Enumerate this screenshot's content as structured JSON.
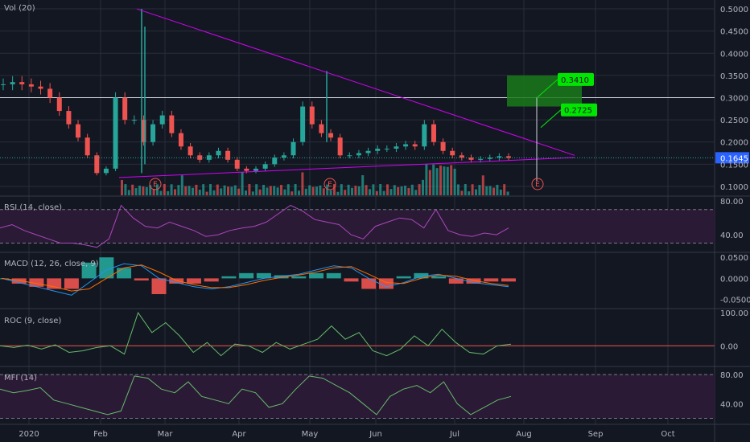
{
  "colors": {
    "background": "#131722",
    "grid": "#2a2e39",
    "text": "#b2b5be",
    "up": "#26a69a",
    "down": "#ef5350",
    "trendline": "#d500f9",
    "rsi": "#ab47bc",
    "macd": "#2196f3",
    "signal": "#ff6d00",
    "roc": "#66bb6a",
    "zero_line": "#ef5350",
    "band_fill": "#2a1a35",
    "box_fill": "#1b7a1b",
    "anno_bg": "#00e600",
    "last_price_bg": "#2962ff"
  },
  "chart_data": [
    {
      "type": "candlestick",
      "pane": "main",
      "legend": "Vol (20)",
      "y_axis_labels": [
        "0.5000",
        "0.4500",
        "0.4000",
        "0.3500",
        "0.3000",
        "0.2500",
        "0.2000",
        "0.1500",
        "0.1000"
      ],
      "ylim": [
        0.08,
        0.52
      ],
      "last_price": "0.1645",
      "horizontal_level": 0.3,
      "annotations": [
        {
          "label": "0.3410",
          "value": 0.341
        },
        {
          "label": "0.2725",
          "value": 0.2725
        }
      ],
      "target_box": {
        "from": 0.28,
        "to": 0.35
      },
      "earnings_label": "E",
      "x_tick_labels": [
        "2020",
        "Feb",
        "Mar",
        "Apr",
        "May",
        "Jun",
        "Jul",
        "Aug",
        "Sep",
        "Oct"
      ],
      "price_series": [
        0.33,
        0.335,
        0.33,
        0.325,
        0.32,
        0.3,
        0.27,
        0.24,
        0.21,
        0.17,
        0.13,
        0.14,
        0.3,
        0.25,
        0.25,
        0.2,
        0.24,
        0.26,
        0.22,
        0.19,
        0.17,
        0.16,
        0.17,
        0.18,
        0.16,
        0.14,
        0.135,
        0.14,
        0.15,
        0.165,
        0.17,
        0.2,
        0.28,
        0.24,
        0.22,
        0.21,
        0.17,
        0.17,
        0.175,
        0.18,
        0.185,
        0.185,
        0.19,
        0.195,
        0.19,
        0.24,
        0.2,
        0.18,
        0.17,
        0.165,
        0.16,
        0.162,
        0.165,
        0.168,
        0.1645
      ],
      "trend_upper": {
        "from": [
          0.5,
          "Feb 14"
        ],
        "to": [
          0.17,
          "Aug 27"
        ]
      },
      "trend_lower": {
        "from": [
          0.12,
          "Feb 14"
        ],
        "to": [
          0.165,
          "Aug 27"
        ]
      }
    },
    {
      "type": "line",
      "pane": "rsi",
      "legend": "RSI (14, close)",
      "y_axis_labels": [
        "80.00",
        "40.00"
      ],
      "ylim": [
        20,
        85
      ],
      "band": [
        30,
        70
      ],
      "values": [
        48,
        52,
        45,
        40,
        35,
        30,
        30,
        28,
        25,
        35,
        75,
        60,
        50,
        48,
        55,
        50,
        45,
        38,
        40,
        45,
        48,
        50,
        55,
        65,
        75,
        68,
        58,
        55,
        52,
        40,
        35,
        50,
        55,
        60,
        58,
        48,
        70,
        45,
        40,
        38,
        42,
        40,
        48
      ]
    },
    {
      "type": "line",
      "pane": "macd",
      "legend": "MACD (12, 26, close, 9)",
      "y_axis_labels": [
        "0.0500",
        "0.0000",
        "-0.0500"
      ],
      "ylim": [
        -0.07,
        0.06
      ],
      "macd": [
        0.0,
        -0.01,
        -0.02,
        -0.03,
        -0.04,
        -0.01,
        0.02,
        0.035,
        0.03,
        0.0,
        -0.01,
        -0.02,
        -0.025,
        -0.02,
        -0.01,
        0.0,
        0.005,
        0.01,
        0.02,
        0.03,
        0.025,
        0.0,
        -0.02,
        -0.01,
        0.005,
        0.01,
        0.0,
        -0.01,
        -0.015,
        -0.02
      ],
      "signal": [
        0.0,
        -0.005,
        -0.012,
        -0.02,
        -0.03,
        -0.025,
        0.0,
        0.025,
        0.032,
        0.015,
        -0.005,
        -0.015,
        -0.022,
        -0.022,
        -0.015,
        -0.005,
        0.002,
        0.008,
        0.015,
        0.025,
        0.028,
        0.01,
        -0.01,
        -0.012,
        0.0,
        0.008,
        0.005,
        -0.005,
        -0.012,
        -0.017
      ]
    },
    {
      "type": "line",
      "pane": "roc",
      "legend": "ROC (9, close)",
      "y_axis_labels": [
        "100.00",
        "0.00"
      ],
      "ylim": [
        -60,
        110
      ],
      "zero_line": 0,
      "values": [
        0,
        -5,
        2,
        -10,
        3,
        -20,
        -15,
        -5,
        0,
        -25,
        100,
        40,
        70,
        30,
        -20,
        10,
        -30,
        5,
        0,
        -20,
        10,
        -10,
        5,
        20,
        60,
        20,
        40,
        -15,
        -30,
        -10,
        30,
        0,
        50,
        10,
        -20,
        -25,
        0,
        5
      ]
    },
    {
      "type": "line",
      "pane": "mfi",
      "legend": "MFI (14)",
      "y_axis_labels": [
        "80.00",
        "40.00"
      ],
      "ylim": [
        15,
        90
      ],
      "band": [
        20,
        80
      ],
      "values": [
        60,
        55,
        58,
        62,
        45,
        40,
        35,
        30,
        25,
        30,
        78,
        75,
        60,
        55,
        70,
        50,
        45,
        40,
        60,
        55,
        35,
        40,
        60,
        78,
        75,
        65,
        55,
        40,
        25,
        50,
        60,
        65,
        55,
        70,
        40,
        25,
        35,
        45,
        50
      ]
    }
  ]
}
